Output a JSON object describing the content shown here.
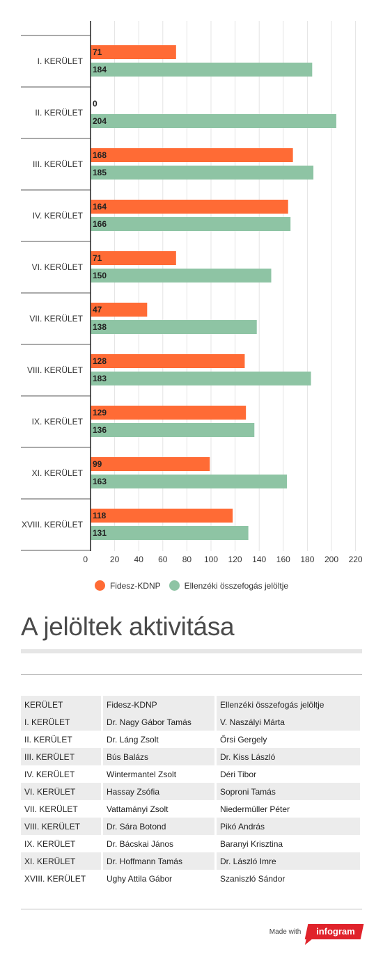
{
  "chart_data": {
    "type": "bar",
    "orientation": "horizontal",
    "categories": [
      "I. KERÜLET",
      "II. KERÜLET",
      "III. KERÜLET",
      "IV. KERÜLET",
      "VI. KERÜLET",
      "VII. KERÜLET",
      "VIII. KERÜLET",
      "IX. KERÜLET",
      "XI. KERÜLET",
      "XVIII. KERÜLET"
    ],
    "series": [
      {
        "name": "Fidesz-KDNP",
        "color": "#ff6b35",
        "values": [
          71,
          0,
          168,
          164,
          71,
          47,
          128,
          129,
          99,
          118
        ]
      },
      {
        "name": "Ellenzéki összefogás jelöltje",
        "color": "#8ec4a4",
        "values": [
          184,
          204,
          185,
          166,
          150,
          138,
          183,
          136,
          163,
          131
        ]
      }
    ],
    "xlim": [
      0,
      220
    ],
    "xticks": [
      0,
      20,
      40,
      60,
      80,
      100,
      120,
      140,
      160,
      180,
      200,
      220
    ],
    "grid": true,
    "legend_position": "bottom"
  },
  "legend": [
    {
      "label": "Fidesz-KDNP",
      "color": "#ff6b35"
    },
    {
      "label": "Ellenzéki összefogás jelöltje",
      "color": "#8ec4a4"
    }
  ],
  "section_title": "A jelöltek aktivitása",
  "table": {
    "headers": [
      "KERÜLET",
      "Fidesz-KDNP",
      "Ellenzéki összefogás jelöltje"
    ],
    "rows": [
      [
        "I. KERÜLET",
        "Dr. Nagy Gábor Tamás",
        "V. Naszályi Márta"
      ],
      [
        "II. KERÜLET",
        "Dr. Láng Zsolt",
        "Őrsi Gergely"
      ],
      [
        "III. KERÜLET",
        "Bús Balázs",
        "Dr. Kiss László"
      ],
      [
        "IV. KERÜLET",
        "Wintermantel Zsolt",
        "Déri Tibor"
      ],
      [
        "VI. KERÜLET",
        "Hassay Zsófia",
        "Soproni Tamás"
      ],
      [
        "VII. KERÜLET",
        "Vattamányi Zsolt",
        "Niedermüller Péter"
      ],
      [
        "VIII. KERÜLET",
        "Dr. Sára Botond",
        "Pikó András"
      ],
      [
        "IX. KERÜLET",
        "Dr. Bácskai János",
        "Baranyi Krisztina"
      ],
      [
        "XI. KERÜLET",
        "Dr. Hoffmann Tamás",
        "Dr. László Imre"
      ],
      [
        "XVIII. KERÜLET",
        "Ughy Attila Gábor",
        "Szaniszló Sándor"
      ]
    ]
  },
  "footer": {
    "made_with": "Made with",
    "brand": "infogram",
    "brand_color": "#e0232b"
  }
}
